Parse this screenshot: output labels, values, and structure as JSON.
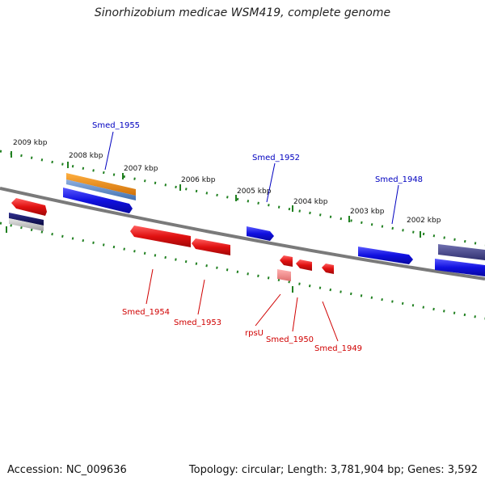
{
  "title": "Sinorhizobium medicae WSM419, complete genome",
  "accession": "Accession: NC_009636",
  "summary": "Topology: circular; Length: 3,781,904 bp; Genes: 3,592",
  "colors": {
    "forward": "#1010e0",
    "reverse": "#e01010",
    "reverse_light": "#f08080",
    "backbone": "#808080",
    "tick": "#208020",
    "orange": "#f09010",
    "navy": "#101060",
    "purple": "#404080"
  },
  "ticks": [
    {
      "label": "2009 kbp"
    },
    {
      "label": "2008 kbp"
    },
    {
      "label": "2007 kbp"
    },
    {
      "label": "2006 kbp"
    },
    {
      "label": "2005 kbp"
    },
    {
      "label": "2004 kbp"
    },
    {
      "label": "2003 kbp"
    },
    {
      "label": "2002 kbp"
    }
  ],
  "labels": {
    "smed_1955": "Smed_1955",
    "smed_1952": "Smed_1952",
    "smed_1948": "Smed_1948",
    "smed_1954": "Smed_1954",
    "smed_1953": "Smed_1953",
    "rpsu": "rpsU",
    "smed_1950": "Smed_1950",
    "smed_1949": "Smed_1949"
  }
}
